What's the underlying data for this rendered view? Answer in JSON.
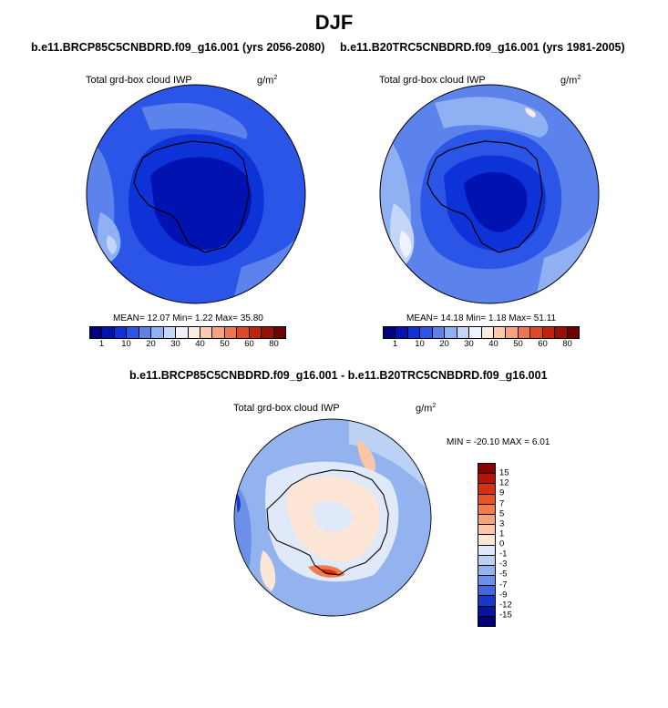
{
  "title": "DJF",
  "panels": [
    {
      "case": "b.e11.BRCP85C5CNBDRD.f09_g16.001 (yrs 2056-2080)",
      "variable": "Total grd-box cloud IWP",
      "units": "g/m",
      "units_exp": "2",
      "stats": "MEAN=  12.07  Min=   1.22  Max=  35.80"
    },
    {
      "case": "b.e11.B20TRC5CNBDRD.f09_g16.001 (yrs 1981-2005)",
      "variable": "Total grd-box cloud IWP",
      "units": "g/m",
      "units_exp": "2",
      "stats": "MEAN=  14.18  Min=   1.18  Max=  51.11"
    }
  ],
  "abs_colorbar": {
    "labels": [
      "1",
      "10",
      "20",
      "30",
      "40",
      "50",
      "60",
      "80"
    ],
    "colors": [
      "#000080",
      "#0012b0",
      "#0c32d8",
      "#2a55e6",
      "#5c82ec",
      "#8fb0f2",
      "#c3d6f8",
      "#eef2fc",
      "#fcece0",
      "#fbcbab",
      "#f7a27c",
      "#ee7550",
      "#de4828",
      "#c2230f",
      "#9a1005",
      "#6e0000"
    ]
  },
  "diff": {
    "title": "b.e11.BRCP85C5CNBDRD.f09_g16.001 - b.e11.B20TRC5CNBDRD.f09_g16.001",
    "variable": "Total grd-box cloud IWP",
    "units": "g/m",
    "units_exp": "2",
    "stats": "MIN = -20.10 MAX =   6.01"
  },
  "diff_colorbar": {
    "labels": [
      "15",
      "12",
      "9",
      "7",
      "5",
      "3",
      "1",
      "0",
      "-1",
      "-3",
      "-5",
      "-7",
      "-9",
      "-12",
      "-15"
    ],
    "colors": [
      "#8a0000",
      "#b81406",
      "#d8300e",
      "#ea5424",
      "#f37b4c",
      "#f8a27c",
      "#fbc6a6",
      "#fde6d6",
      "#dfe9f9",
      "#bcd2f5",
      "#93b3ef",
      "#6a90e8",
      "#3f68de",
      "#1838c8",
      "#04169c",
      "#000078"
    ]
  }
}
